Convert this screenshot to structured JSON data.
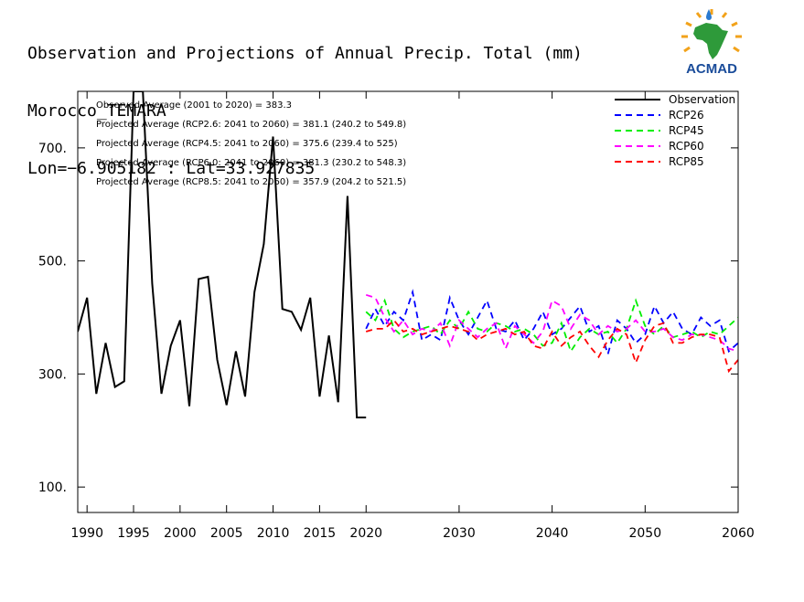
{
  "title_lines": [
    "Observation and Projections of Annual Precip. Total (mm)",
    "Morocco_TEMARA",
    "Lon=−6.905182 : Lat=33.927835"
  ],
  "logo": {
    "text": "ACMAD",
    "icon": "africa-map-logo",
    "colors": {
      "africa": "#2e9a3a",
      "text": "#1a4c9a",
      "rays": "#f2a21a",
      "drop": "#2a7ad0"
    }
  },
  "chart_data": {
    "type": "line",
    "title": "Observation and Projections of Annual Precip. Total (mm)",
    "xlim": [
      1989,
      2060
    ],
    "ylim": [
      55,
      800
    ],
    "y_ticks": [
      {
        "value": 100,
        "label": "100."
      },
      {
        "value": 300,
        "label": "300."
      },
      {
        "value": 500,
        "label": "500."
      },
      {
        "value": 700,
        "label": "700."
      }
    ],
    "x_ticks": [
      {
        "value": 1990,
        "label": "1990"
      },
      {
        "value": 1995,
        "label": "1995"
      },
      {
        "value": 2000,
        "label": "2000"
      },
      {
        "value": 2005,
        "label": "2005"
      },
      {
        "value": 2010,
        "label": "2010"
      },
      {
        "value": 2015,
        "label": "2015"
      },
      {
        "value": 2020,
        "label": "2020"
      },
      {
        "value": 2030,
        "label": "2030"
      },
      {
        "value": 2040,
        "label": "2040"
      },
      {
        "value": 2050,
        "label": "2050"
      },
      {
        "value": 2060,
        "label": "2060"
      }
    ],
    "grid": false,
    "legend_position": "top-right",
    "annotations": [
      "Observed Average (2001 to 2020) = 383.3",
      "Projected Average (RCP2.6: 2041 to 2060) = 381.1 (240.2 to 549.8)",
      "Projected Average (RCP4.5: 2041 to 2060) = 375.6 (239.4 to 525)",
      "Projected Average (RCP6.0: 2041 to 2060) = 381.3 (230.2 to 548.3)",
      "Projected Average (RCP8.5: 2041 to 2060) = 357.9 (204.2 to 521.5)"
    ],
    "series": [
      {
        "name": "Observation",
        "color": "#000000",
        "dashed": false,
        "x": [
          1989,
          1990,
          1991,
          1992,
          1993,
          1994,
          1995,
          1996,
          1997,
          1998,
          1999,
          2000,
          2001,
          2002,
          2003,
          2004,
          2005,
          2006,
          2007,
          2008,
          2009,
          2010,
          2011,
          2012,
          2013,
          2014,
          2015,
          2016,
          2017,
          2018,
          2019,
          2020
        ],
        "y": [
          375,
          435,
          265,
          355,
          277,
          287,
          800,
          800,
          460,
          265,
          350,
          395,
          243,
          468,
          472,
          325,
          245,
          340,
          260,
          445,
          530,
          720,
          415,
          410,
          378,
          435,
          260,
          368,
          250,
          615,
          223,
          223
        ]
      },
      {
        "name": "RCP26",
        "color": "#0000ff",
        "dashed": true,
        "x": [
          2020,
          2021,
          2022,
          2023,
          2024,
          2025,
          2026,
          2027,
          2028,
          2029,
          2030,
          2031,
          2032,
          2033,
          2034,
          2035,
          2036,
          2037,
          2038,
          2039,
          2040,
          2041,
          2042,
          2043,
          2044,
          2045,
          2046,
          2047,
          2048,
          2049,
          2050,
          2051,
          2052,
          2053,
          2054,
          2055,
          2056,
          2057,
          2058,
          2059,
          2060
        ],
        "y": [
          380,
          415,
          385,
          410,
          395,
          445,
          360,
          370,
          360,
          435,
          395,
          370,
          400,
          430,
          380,
          375,
          395,
          360,
          380,
          410,
          370,
          380,
          400,
          420,
          375,
          385,
          335,
          395,
          380,
          355,
          370,
          420,
          390,
          410,
          380,
          370,
          400,
          385,
          395,
          340,
          355
        ]
      },
      {
        "name": "RCP45",
        "color": "#00ee00",
        "dashed": true,
        "x": [
          2020,
          2021,
          2022,
          2023,
          2024,
          2025,
          2026,
          2027,
          2028,
          2029,
          2030,
          2031,
          2032,
          2033,
          2034,
          2035,
          2036,
          2037,
          2038,
          2039,
          2040,
          2041,
          2042,
          2043,
          2044,
          2045,
          2046,
          2047,
          2048,
          2049,
          2050,
          2051,
          2052,
          2053,
          2054,
          2055,
          2056,
          2057,
          2058,
          2059,
          2060
        ],
        "y": [
          410,
          395,
          430,
          380,
          365,
          375,
          380,
          385,
          370,
          395,
          380,
          410,
          380,
          375,
          390,
          385,
          375,
          380,
          370,
          350,
          355,
          390,
          340,
          365,
          380,
          370,
          375,
          355,
          380,
          430,
          385,
          370,
          385,
          365,
          370,
          375,
          365,
          375,
          370,
          385,
          400
        ]
      },
      {
        "name": "RCP60",
        "color": "#ff00ff",
        "dashed": true,
        "x": [
          2020,
          2021,
          2022,
          2023,
          2024,
          2025,
          2026,
          2027,
          2028,
          2029,
          2030,
          2031,
          2032,
          2033,
          2034,
          2035,
          2036,
          2037,
          2038,
          2039,
          2040,
          2041,
          2042,
          2043,
          2044,
          2045,
          2046,
          2047,
          2048,
          2049,
          2050,
          2051,
          2052,
          2053,
          2054,
          2055,
          2056,
          2057,
          2058,
          2059,
          2060
        ],
        "y": [
          440,
          435,
          400,
          375,
          395,
          370,
          380,
          375,
          390,
          350,
          395,
          380,
          365,
          380,
          390,
          345,
          385,
          370,
          355,
          375,
          430,
          420,
          380,
          405,
          395,
          370,
          385,
          375,
          380,
          395,
          375,
          375,
          380,
          365,
          360,
          370,
          370,
          365,
          360,
          345,
          340
        ]
      },
      {
        "name": "RCP85",
        "color": "#ff0000",
        "dashed": true,
        "x": [
          2020,
          2021,
          2022,
          2023,
          2024,
          2025,
          2026,
          2027,
          2028,
          2029,
          2030,
          2031,
          2032,
          2033,
          2034,
          2035,
          2036,
          2037,
          2038,
          2039,
          2040,
          2041,
          2042,
          2043,
          2044,
          2045,
          2046,
          2047,
          2048,
          2049,
          2050,
          2051,
          2052,
          2053,
          2054,
          2055,
          2056,
          2057,
          2058,
          2059,
          2060
        ],
        "y": [
          375,
          380,
          380,
          395,
          375,
          380,
          370,
          375,
          380,
          385,
          380,
          375,
          360,
          370,
          375,
          380,
          370,
          375,
          350,
          345,
          375,
          350,
          365,
          375,
          350,
          330,
          360,
          380,
          370,
          320,
          360,
          385,
          390,
          355,
          355,
          365,
          370,
          370,
          365,
          305,
          325
        ]
      }
    ]
  }
}
